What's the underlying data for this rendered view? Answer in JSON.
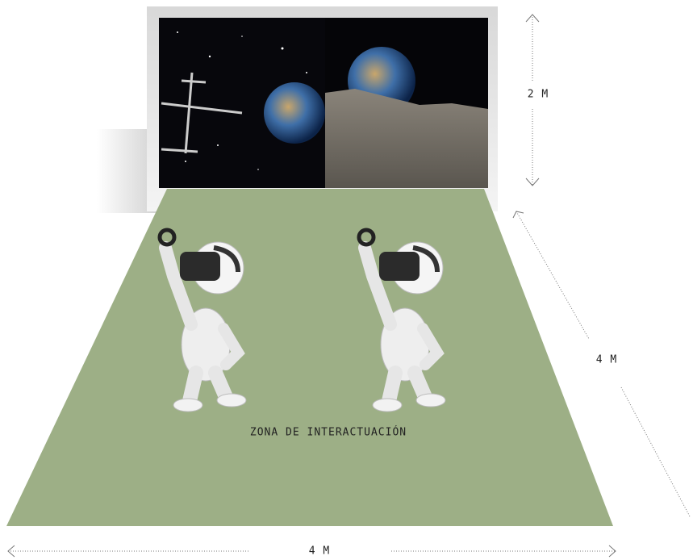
{
  "dimensions": {
    "screen_height": "2 M",
    "zone_depth": "4 M",
    "zone_width": "4 M"
  },
  "zone_label": "ZONA DE INTERACTUACIÓN"
}
